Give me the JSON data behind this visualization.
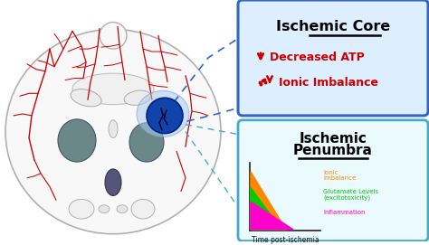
{
  "bg_color": "#ffffff",
  "blood_vessel_color": "#cc0000",
  "gray_matter_color": "#6a8888",
  "ischemic_core_box": {
    "box_color": "#ddeeff",
    "border_color": "#3366cc",
    "title_color": "#000000",
    "text_color": "#cc0000"
  },
  "ischemic_penumbra_box": {
    "box_color": "#eafaff",
    "border_color": "#44aacc",
    "title_color": "#000000",
    "labels": [
      "Ionic\nImbalance",
      "Glutamate Levels\n(excitotoxicity)",
      "Inflammation"
    ],
    "tri_colors": [
      "#ff8800",
      "#00cc00",
      "#ff00cc"
    ]
  },
  "dashed_core_color": "#3366cc",
  "dashed_penumbra_color": "#44aacc"
}
